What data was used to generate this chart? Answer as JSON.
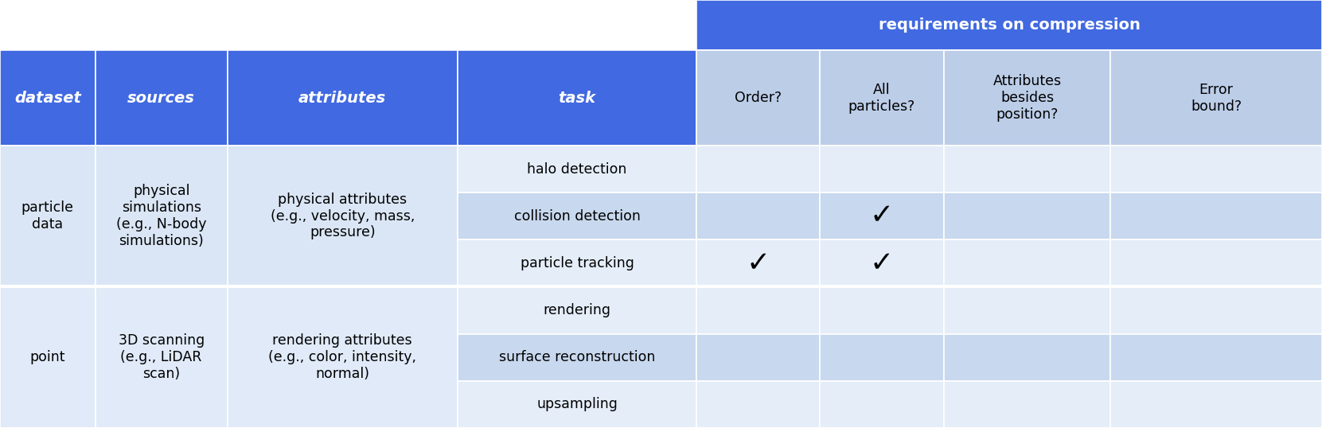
{
  "fig_width": 16.61,
  "fig_height": 5.38,
  "dpi": 100,
  "blue_header": "#4169E1",
  "req_header_light": "#B8CCEE",
  "row_light": "#E8EFF8",
  "row_mid": "#C8D8EE",
  "row_group1_bg": "#DAE6F5",
  "row_group2_bg": "#DCE8F8",
  "group_sep_color": "#FFFFFF",
  "req_span_text": "requirements on compression",
  "rows": [
    {
      "dataset": "particle\ndata",
      "sources": "physical\nsimulations\n(e.g., N-body\nsimulations)",
      "attributes": "physical attributes\n(e.g., velocity, mass,\npressure)",
      "tasks": [
        "halo detection",
        "collision detection",
        "particle tracking"
      ],
      "checks": [
        [
          false,
          false,
          false,
          false
        ],
        [
          false,
          true,
          false,
          false
        ],
        [
          true,
          true,
          false,
          false
        ]
      ]
    },
    {
      "dataset": "point",
      "sources": "3D scanning\n(e.g., LiDAR\nscan)",
      "attributes": "rendering attributes\n(e.g., color, intensity,\nnormal)",
      "tasks": [
        "rendering",
        "surface reconstruction",
        "upsampling"
      ],
      "checks": [
        [
          false,
          false,
          false,
          false
        ],
        [
          false,
          false,
          false,
          false
        ],
        [
          false,
          false,
          false,
          false
        ]
      ]
    }
  ]
}
